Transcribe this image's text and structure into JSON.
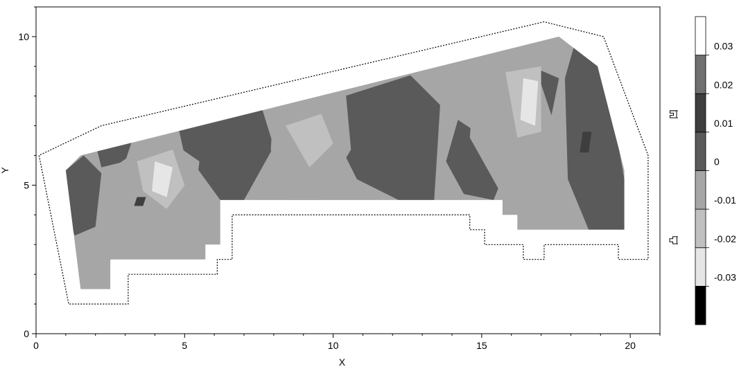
{
  "chart_data": {
    "type": "heatmap",
    "title": "",
    "xlabel": "X",
    "ylabel": "Y",
    "xlim": [
      0,
      21
    ],
    "ylim": [
      0,
      11
    ],
    "x_ticks": [
      0,
      5,
      10,
      15,
      20
    ],
    "y_ticks": [
      0,
      5,
      10
    ],
    "x_tick_labels": [
      "0",
      "5",
      "10",
      "15",
      "20"
    ],
    "y_tick_labels": [
      "0",
      "5",
      "10"
    ],
    "grid": false,
    "colorbar": {
      "placement": "right",
      "levels": [
        -0.03,
        -0.02,
        -0.01,
        0,
        0.01,
        0.02,
        0.03
      ],
      "labels": [
        "0.03",
        "0.02",
        "0.01",
        "0",
        "-0.01",
        "-0.02",
        "-0.03"
      ],
      "colors": [
        "#000000",
        "#e6e6e6",
        "#c0c0c0",
        "#a6a6a6",
        "#5a5a5a",
        "#3e3e3e",
        "#707070",
        "#ffffff"
      ]
    },
    "side_labels": [
      "凹",
      "凸"
    ],
    "outline": {
      "x": [
        0.1,
        1.1,
        3.1,
        3.1,
        6.1,
        6.1,
        6.6,
        6.6,
        14.6,
        14.6,
        15.1,
        15.1,
        16.4,
        16.4,
        17.1,
        17.1,
        19.6,
        19.6,
        20.6,
        20.6,
        19.1,
        17.1,
        2.2,
        0.1
      ],
      "y": [
        6.0,
        1.0,
        1.0,
        2.0,
        2.0,
        2.5,
        2.5,
        4.0,
        4.0,
        3.5,
        3.5,
        3.0,
        3.0,
        2.5,
        2.5,
        3.0,
        3.0,
        2.5,
        2.5,
        6.0,
        10.0,
        10.5,
        7.0,
        6.0
      ]
    },
    "field_region": {
      "x": [
        1.0,
        1.5,
        2.5,
        2.5,
        2.7,
        2.7,
        5.7,
        5.7,
        6.2,
        6.2,
        6.6,
        6.6,
        15.7,
        15.7,
        16.2,
        16.2,
        19.8,
        19.8,
        18.9,
        17.6,
        1.5,
        1.0
      ],
      "y": [
        5.5,
        1.5,
        1.5,
        2.5,
        2.5,
        2.5,
        2.5,
        3.0,
        3.0,
        4.5,
        4.5,
        4.5,
        4.5,
        4.0,
        4.0,
        3.5,
        3.5,
        5.5,
        9.0,
        10.0,
        6.0,
        5.5
      ]
    },
    "bands": [
      {
        "level": 0.005,
        "x": [
          1.0,
          1.6,
          2.2,
          2.0,
          1.3,
          1.0
        ],
        "y": [
          5.5,
          6.0,
          5.4,
          3.6,
          3.3,
          4.2
        ]
      },
      {
        "level": 0.005,
        "x": [
          2.0,
          3.3,
          3.0,
          2.2
        ],
        "y": [
          6.4,
          6.7,
          5.8,
          5.6
        ]
      },
      {
        "level": 0.005,
        "x": [
          4.8,
          7.6,
          8.0,
          7.0,
          6.2,
          5.4,
          5.0
        ],
        "y": [
          6.9,
          7.6,
          6.3,
          4.5,
          4.5,
          5.6,
          6.0
        ]
      },
      {
        "level": 0.005,
        "x": [
          10.4,
          12.6,
          13.6,
          13.4,
          12.2,
          10.8,
          10.2
        ],
        "y": [
          8.0,
          8.7,
          7.7,
          4.5,
          4.5,
          5.2,
          6.4
        ]
      },
      {
        "level": 0.005,
        "x": [
          14.2,
          16.0,
          15.4,
          14.4,
          13.8
        ],
        "y": [
          7.2,
          6.0,
          4.5,
          4.7,
          5.8
        ]
      },
      {
        "level": 0.005,
        "x": [
          18.2,
          19.2,
          19.8,
          19.8,
          18.6,
          17.9,
          17.8
        ],
        "y": [
          10.0,
          8.6,
          5.2,
          3.5,
          3.5,
          5.2,
          8.6
        ]
      },
      {
        "level": 0.005,
        "x": [
          16.2,
          17.6,
          17.2,
          16.4
        ],
        "y": [
          9.2,
          8.6,
          6.6,
          7.8
        ]
      },
      {
        "level": -0.005,
        "x": [
          2.6,
          4.2,
          5.5,
          5.2,
          4.4,
          3.2,
          2.7
        ],
        "y": [
          5.6,
          6.7,
          5.8,
          3.4,
          2.6,
          2.6,
          4.2
        ]
      },
      {
        "level": -0.005,
        "x": [
          8.0,
          10.4,
          10.6,
          9.6,
          8.4,
          7.9
        ],
        "y": [
          7.8,
          8.4,
          6.2,
          4.5,
          4.5,
          6.2
        ]
      },
      {
        "level": -0.005,
        "x": [
          14.8,
          16.6,
          17.4,
          16.8,
          16.0,
          14.6
        ],
        "y": [
          9.3,
          9.6,
          7.2,
          4.4,
          4.1,
          6.6
        ]
      },
      {
        "level": -0.005,
        "x": [
          1.4,
          2.6,
          2.7,
          1.6
        ],
        "y": [
          2.8,
          3.3,
          2.6,
          1.6
        ]
      },
      {
        "level": -0.015,
        "x": [
          3.4,
          4.6,
          5.0,
          4.4,
          3.6
        ],
        "y": [
          5.8,
          6.2,
          5.0,
          4.2,
          4.8
        ]
      },
      {
        "level": -0.015,
        "x": [
          8.4,
          9.6,
          10.0,
          9.2
        ],
        "y": [
          7.0,
          7.4,
          6.4,
          5.6
        ]
      },
      {
        "level": -0.015,
        "x": [
          15.8,
          17.0,
          17.0,
          16.2
        ],
        "y": [
          8.8,
          9.0,
          6.8,
          6.6
        ]
      },
      {
        "level": -0.025,
        "x": [
          4.0,
          4.6,
          4.4,
          3.9
        ],
        "y": [
          5.8,
          5.6,
          4.6,
          4.8
        ]
      },
      {
        "level": -0.025,
        "x": [
          16.4,
          16.9,
          16.8,
          16.3
        ],
        "y": [
          8.6,
          8.5,
          7.0,
          7.2
        ]
      },
      {
        "level": 0.015,
        "x": [
          3.4,
          3.7,
          3.6,
          3.3
        ],
        "y": [
          4.6,
          4.6,
          4.3,
          4.3
        ]
      },
      {
        "level": 0.015,
        "x": [
          18.4,
          18.7,
          18.6,
          18.3
        ],
        "y": [
          6.8,
          6.8,
          6.1,
          6.1
        ]
      }
    ]
  }
}
